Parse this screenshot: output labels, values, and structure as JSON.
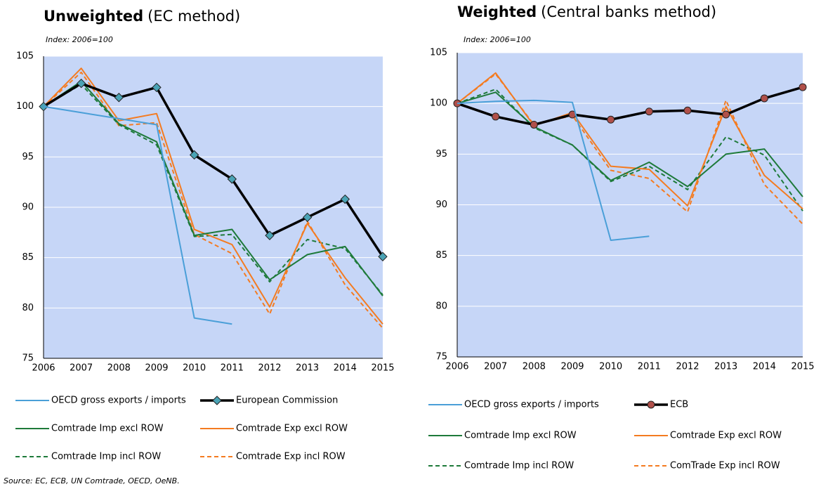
{
  "chart_data": [
    {
      "type": "line",
      "title": "Unweighted",
      "title_suffix": "(EC method)",
      "y_note": "Index: 2006=100",
      "categories": [
        "2006",
        "2007",
        "2008",
        "2009",
        "2010",
        "2011",
        "2012",
        "2013",
        "2014",
        "2015"
      ],
      "ylim": [
        75,
        105
      ],
      "yticks": [
        75,
        80,
        85,
        90,
        95,
        100,
        105
      ],
      "grid": true,
      "background": "#c6d6f7",
      "series": [
        {
          "name": "OECD gross exports / imports",
          "color": "#4a9fd8",
          "dash": false,
          "marker": null,
          "values": [
            100,
            99.4,
            98.8,
            98.2,
            79.0,
            78.4,
            null,
            null,
            null,
            null
          ]
        },
        {
          "name": "European Commission",
          "color": "#000000",
          "dash": false,
          "marker": "diamond",
          "marker_color": "#4aa3b5",
          "values": [
            100,
            102.3,
            100.9,
            101.9,
            95.2,
            92.8,
            87.2,
            89.0,
            90.8,
            85.1
          ]
        },
        {
          "name": "Comtrade Imp excl ROW",
          "color": "#1e7a3a",
          "dash": false,
          "marker": null,
          "values": [
            100,
            102.5,
            98.3,
            96.5,
            87.2,
            87.8,
            82.8,
            85.3,
            86.1,
            81.2
          ]
        },
        {
          "name": "Comtrade Exp excl ROW",
          "color": "#f47b20",
          "dash": false,
          "marker": null,
          "values": [
            100,
            103.8,
            98.6,
            99.3,
            87.8,
            86.3,
            80.1,
            88.4,
            83.0,
            78.4
          ]
        },
        {
          "name": "Comtrade Imp incl ROW",
          "color": "#1e7a3a",
          "dash": true,
          "marker": null,
          "values": [
            100,
            102.2,
            98.2,
            96.2,
            87.1,
            87.3,
            82.6,
            86.8,
            85.9,
            81.3
          ]
        },
        {
          "name": "Comtrade Exp incl ROW",
          "color": "#f47b20",
          "dash": true,
          "marker": null,
          "values": [
            100,
            103.4,
            98.1,
            98.4,
            87.3,
            85.4,
            79.4,
            88.6,
            82.3,
            78.0
          ]
        }
      ]
    },
    {
      "type": "line",
      "title": "Weighted",
      "title_suffix": "(Central banks method)",
      "y_note": "Index: 2006=100",
      "categories": [
        "2006",
        "2007",
        "2008",
        "2009",
        "2010",
        "2011",
        "2012",
        "2013",
        "2014",
        "2015"
      ],
      "ylim": [
        75,
        105
      ],
      "yticks": [
        75,
        80,
        85,
        90,
        95,
        100,
        105
      ],
      "grid": true,
      "background": "#c6d6f7",
      "series": [
        {
          "name": "OECD gross exports / imports",
          "color": "#4a9fd8",
          "dash": false,
          "marker": null,
          "values": [
            100,
            100.2,
            100.3,
            100.1,
            86.5,
            86.9,
            null,
            null,
            null,
            null
          ]
        },
        {
          "name": "ECB",
          "color": "#000000",
          "dash": false,
          "marker": "circle",
          "marker_color": "#b0504a",
          "values": [
            100,
            98.7,
            97.9,
            98.9,
            98.4,
            99.2,
            99.3,
            98.9,
            100.5,
            101.6
          ]
        },
        {
          "name": "Comtrade Imp excl ROW",
          "color": "#1e7a3a",
          "dash": false,
          "marker": null,
          "values": [
            100,
            101.1,
            97.7,
            95.9,
            92.4,
            94.2,
            91.8,
            95.0,
            95.5,
            90.8
          ]
        },
        {
          "name": "Comtrade Exp excl ROW",
          "color": "#f47b20",
          "dash": false,
          "marker": null,
          "values": [
            100,
            103.0,
            97.8,
            99.1,
            93.8,
            93.5,
            89.9,
            99.7,
            92.9,
            89.6
          ]
        },
        {
          "name": "Comtrade Imp incl ROW",
          "color": "#1e7a3a",
          "dash": true,
          "marker": null,
          "values": [
            100,
            101.4,
            97.6,
            95.9,
            92.3,
            93.8,
            91.5,
            96.7,
            94.9,
            89.4
          ]
        },
        {
          "name": "ComTrade Exp incl ROW",
          "color": "#f47b20",
          "dash": true,
          "marker": null,
          "values": [
            100,
            102.9,
            97.9,
            98.8,
            93.4,
            92.6,
            89.3,
            100.3,
            92.0,
            88.1
          ]
        }
      ]
    }
  ],
  "source": "Source: EC, ECB, UN Comtrade, OECD, OeNB."
}
